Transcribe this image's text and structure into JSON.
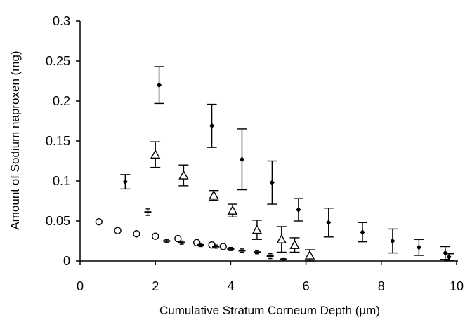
{
  "chart_data": {
    "type": "scatter",
    "title": "",
    "xlabel": "Cumulative Stratum Corneum Depth (µm)",
    "ylabel": "Amount of Sodium naproxen (mg)",
    "xlim": [
      0,
      10
    ],
    "ylim": [
      0,
      0.3
    ],
    "x_ticks": [
      "0",
      "2",
      "4",
      "6",
      "8",
      "10"
    ],
    "y_ticks": [
      "0",
      "0.05",
      "0.1",
      "0.15",
      "0.2",
      "0.25",
      "0.3"
    ],
    "grid": false,
    "legend": "none",
    "series": [
      {
        "marker": "filled-diamond",
        "color": "#000000",
        "points": [
          {
            "x": 1.2,
            "y": 0.099,
            "err": 0.009
          },
          {
            "x": 2.1,
            "y": 0.22,
            "err": 0.023
          },
          {
            "x": 3.5,
            "y": 0.169,
            "err": 0.027
          },
          {
            "x": 4.3,
            "y": 0.127,
            "err": 0.038
          },
          {
            "x": 5.1,
            "y": 0.098,
            "err": 0.027
          },
          {
            "x": 5.8,
            "y": 0.064,
            "err": 0.014
          },
          {
            "x": 6.6,
            "y": 0.048,
            "err": 0.018
          },
          {
            "x": 7.5,
            "y": 0.036,
            "err": 0.012
          },
          {
            "x": 8.3,
            "y": 0.025,
            "err": 0.015
          },
          {
            "x": 9.0,
            "y": 0.017,
            "err": 0.01
          },
          {
            "x": 9.7,
            "y": 0.01,
            "err": 0.008
          },
          {
            "x": 9.8,
            "y": 0.005,
            "err": 0.004
          }
        ]
      },
      {
        "marker": "open-triangle",
        "color": "#000000",
        "points": [
          {
            "x": 2.0,
            "y": 0.133,
            "err": 0.016
          },
          {
            "x": 2.75,
            "y": 0.107,
            "err": 0.013
          },
          {
            "x": 3.55,
            "y": 0.082,
            "err": 0.006
          },
          {
            "x": 4.05,
            "y": 0.063,
            "err": 0.008
          },
          {
            "x": 4.7,
            "y": 0.039,
            "err": 0.012
          },
          {
            "x": 5.35,
            "y": 0.027,
            "err": 0.016
          },
          {
            "x": 5.7,
            "y": 0.02,
            "err": 0.009
          },
          {
            "x": 6.1,
            "y": 0.007,
            "err": 0.007
          }
        ]
      },
      {
        "marker": "open-circle",
        "color": "#000000",
        "points": [
          {
            "x": 0.5,
            "y": 0.049,
            "err": 0.003
          },
          {
            "x": 1.0,
            "y": 0.038,
            "err": 0.002
          },
          {
            "x": 1.5,
            "y": 0.034,
            "err": 0.002
          },
          {
            "x": 2.0,
            "y": 0.031,
            "err": 0.002
          },
          {
            "x": 2.6,
            "y": 0.028,
            "err": 0.002
          },
          {
            "x": 3.1,
            "y": 0.023,
            "err": 0.002
          },
          {
            "x": 3.5,
            "y": 0.02,
            "err": 0.002
          },
          {
            "x": 3.8,
            "y": 0.018,
            "err": 0.002
          }
        ]
      },
      {
        "marker": "dash",
        "color": "#000000",
        "points": [
          {
            "x": 1.8,
            "y": 0.061,
            "err": 0.004
          },
          {
            "x": 2.3,
            "y": 0.025,
            "err": 0.002
          },
          {
            "x": 2.7,
            "y": 0.023,
            "err": 0.002
          },
          {
            "x": 3.2,
            "y": 0.02,
            "err": 0.002
          },
          {
            "x": 3.6,
            "y": 0.018,
            "err": 0.002
          },
          {
            "x": 4.0,
            "y": 0.015,
            "err": 0.002
          },
          {
            "x": 4.3,
            "y": 0.013,
            "err": 0.002
          },
          {
            "x": 4.7,
            "y": 0.011,
            "err": 0.002
          },
          {
            "x": 5.05,
            "y": 0.006,
            "err": 0.003
          },
          {
            "x": 5.4,
            "y": 0.002,
            "err": 0.001
          }
        ]
      }
    ]
  }
}
